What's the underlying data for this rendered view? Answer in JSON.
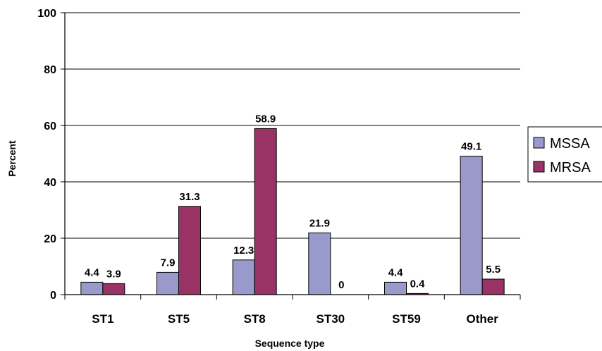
{
  "chart_data": {
    "type": "bar",
    "categories": [
      "ST1",
      "ST5",
      "ST8",
      "ST30",
      "ST59",
      "Other"
    ],
    "series": [
      {
        "name": "MSSA",
        "values": [
          4.4,
          7.9,
          12.3,
          21.9,
          4.4,
          49.1
        ],
        "labels": [
          "4.4",
          "7.9",
          "12.3",
          "21.9",
          "4.4",
          "49.1"
        ]
      },
      {
        "name": "MRSA",
        "values": [
          3.9,
          31.3,
          58.9,
          0,
          0.4,
          5.5
        ],
        "labels": [
          "3.9",
          "31.3",
          "58.9",
          "0",
          "0.4",
          "5.5"
        ]
      }
    ],
    "xlabel": "Sequence type",
    "ylabel": "Percent",
    "ylim": [
      0,
      100
    ],
    "yticks": [
      "0",
      "20",
      "40",
      "60",
      "80",
      "100"
    ],
    "grid": true,
    "legend_position": "right",
    "colors": {
      "MSSA": "#9999cc",
      "MRSA": "#993366"
    }
  }
}
